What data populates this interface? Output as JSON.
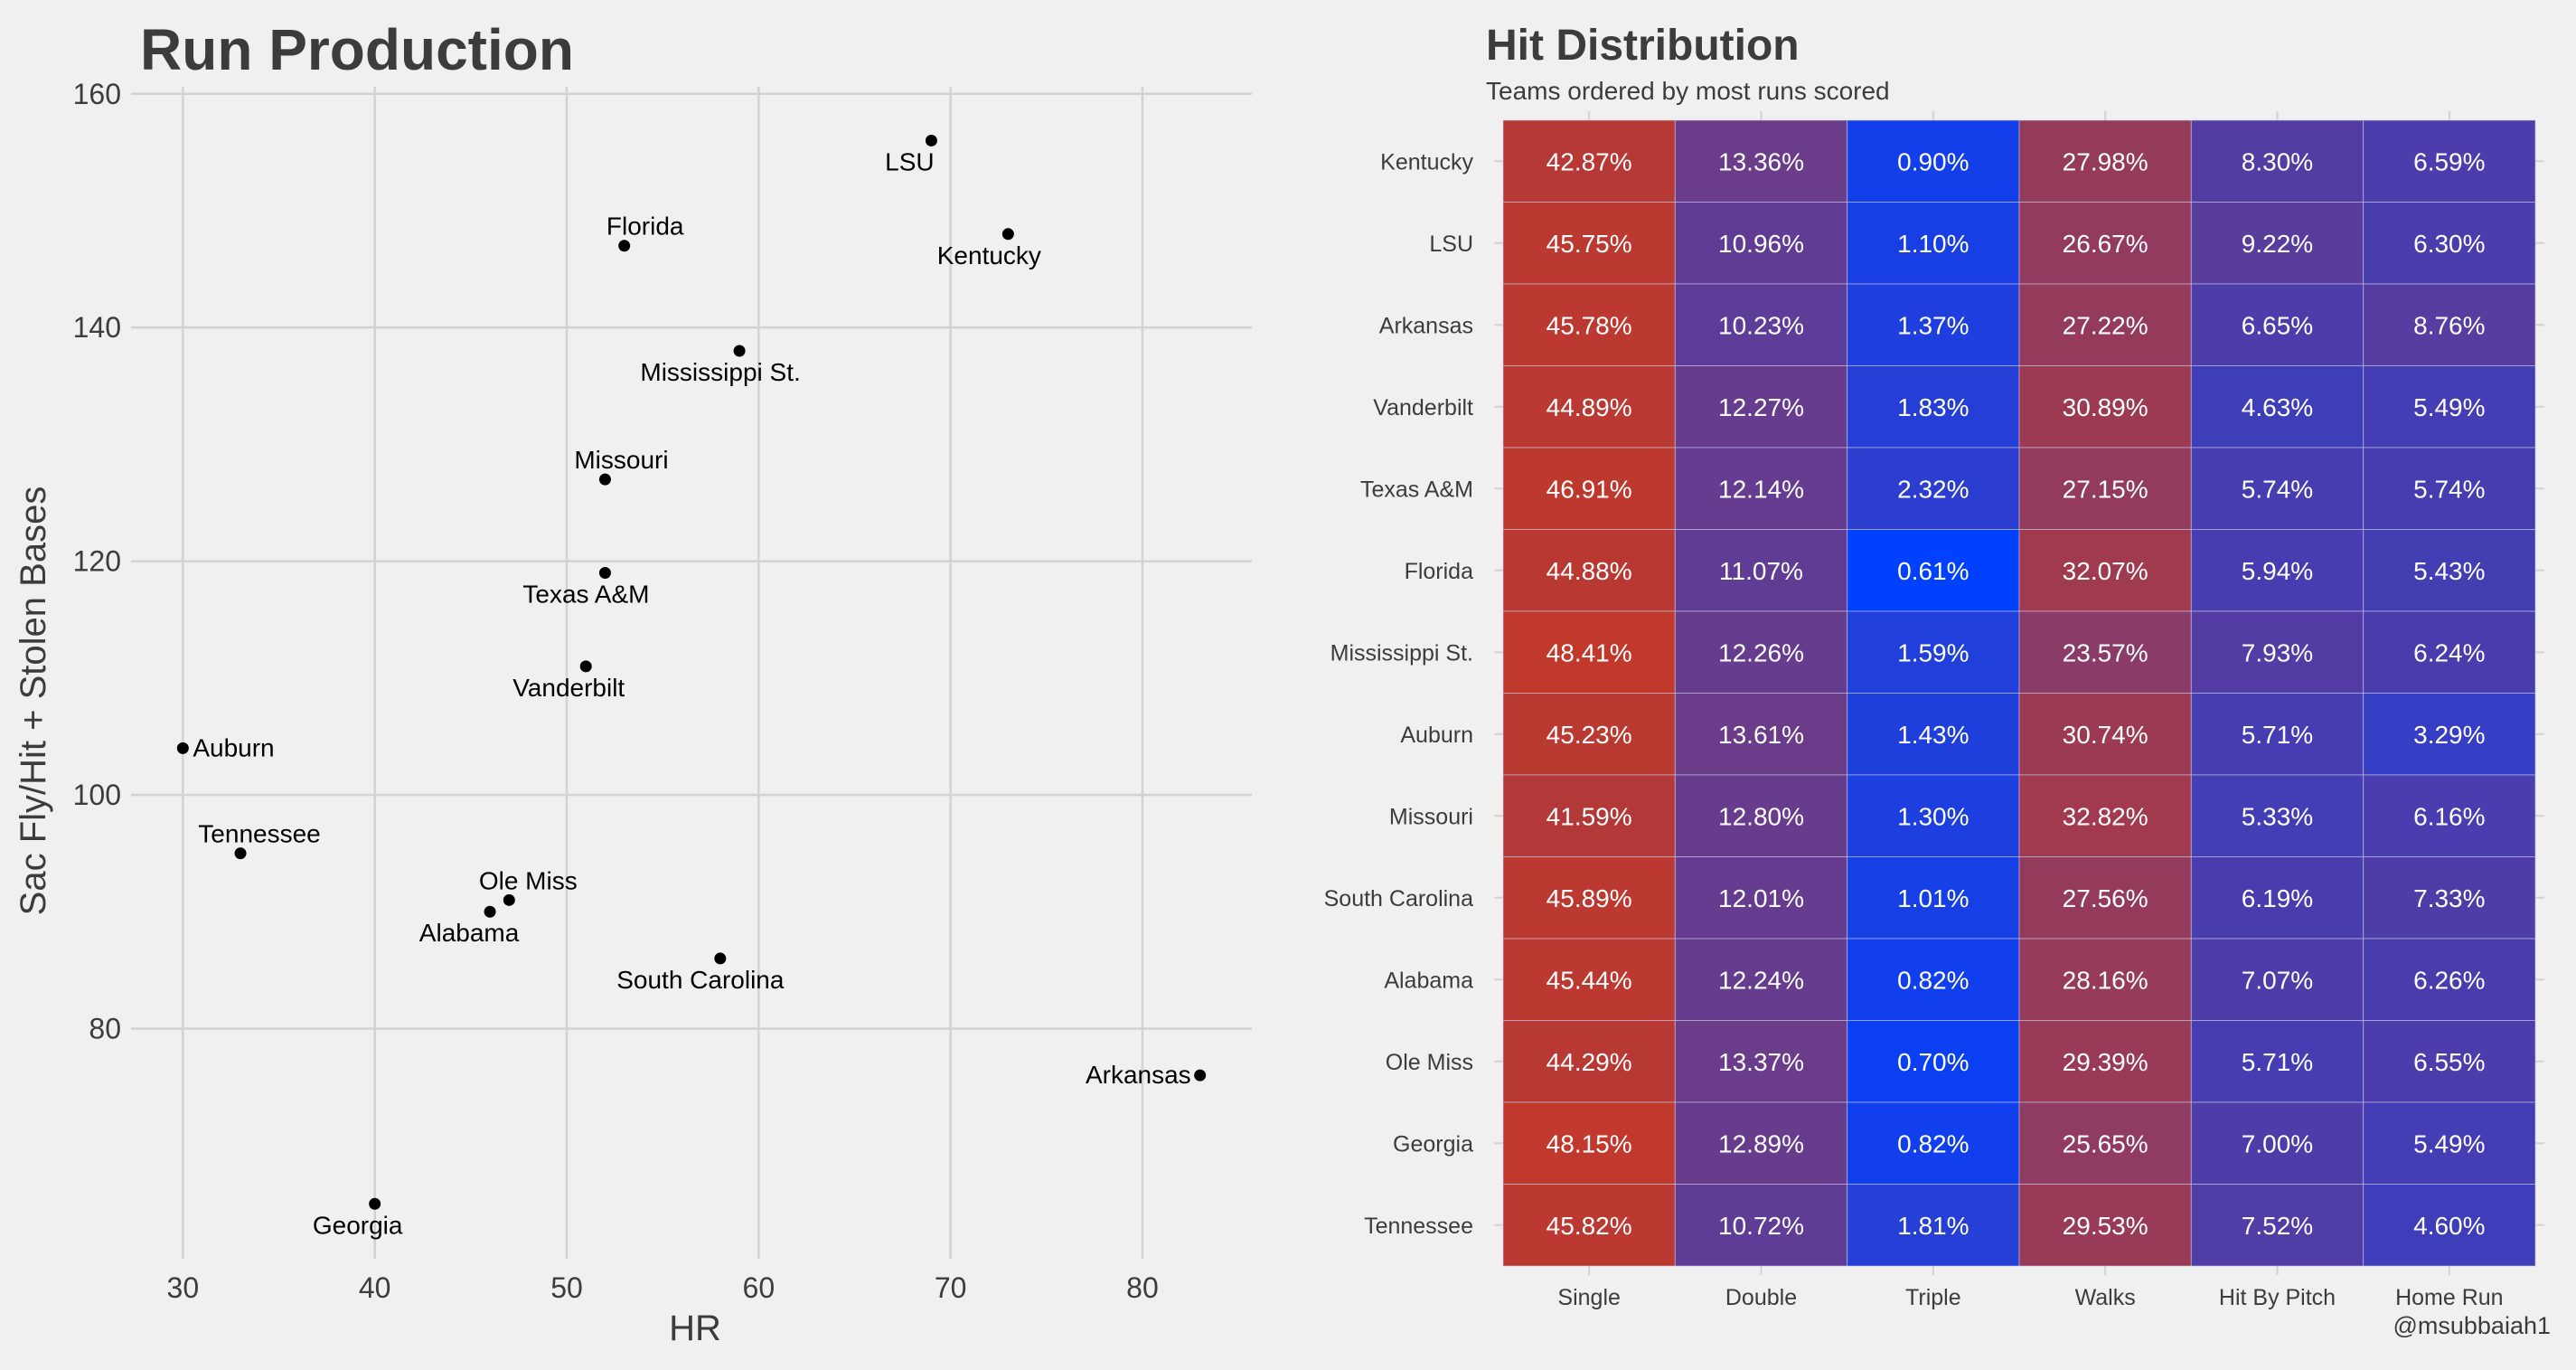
{
  "chart_data": [
    {
      "type": "scatter",
      "title": "Run Production",
      "xlabel": "HR",
      "ylabel": "Sac Fly/Hit + Stolen Bases",
      "xlim": [
        27.3,
        85.7
      ],
      "ylim": [
        60.3,
        160.6
      ],
      "xticks": [
        30,
        40,
        50,
        60,
        70,
        80
      ],
      "yticks": [
        80,
        100,
        120,
        140,
        160
      ],
      "grid": true,
      "points": [
        {
          "label": "LSU",
          "x": 69,
          "y": 156
        },
        {
          "label": "Kentucky",
          "x": 73,
          "y": 148
        },
        {
          "label": "Florida",
          "x": 53,
          "y": 147
        },
        {
          "label": "Mississippi St.",
          "x": 59,
          "y": 138
        },
        {
          "label": "Missouri",
          "x": 52,
          "y": 127
        },
        {
          "label": "Texas A&M",
          "x": 52,
          "y": 119
        },
        {
          "label": "Vanderbilt",
          "x": 51,
          "y": 111
        },
        {
          "label": "Auburn",
          "x": 30,
          "y": 104
        },
        {
          "label": "Tennessee",
          "x": 33,
          "y": 95
        },
        {
          "label": "Ole Miss",
          "x": 47,
          "y": 91
        },
        {
          "label": "Alabama",
          "x": 46,
          "y": 90
        },
        {
          "label": "South Carolina",
          "x": 58,
          "y": 86
        },
        {
          "label": "Arkansas",
          "x": 83,
          "y": 76
        },
        {
          "label": "Georgia",
          "x": 40,
          "y": 65
        }
      ]
    },
    {
      "type": "heatmap",
      "title": "Hit Distribution",
      "subtitle": "Teams ordered by most runs scored",
      "columns": [
        "Single",
        "Double",
        "Triple",
        "Walks",
        "Hit By Pitch",
        "Home Run"
      ],
      "rows": [
        "Kentucky",
        "LSU",
        "Arkansas",
        "Vanderbilt",
        "Texas A&M",
        "Florida",
        "Mississippi St.",
        "Auburn",
        "Missouri",
        "South Carolina",
        "Alabama",
        "Ole Miss",
        "Georgia",
        "Tennessee"
      ],
      "values": [
        [
          42.87,
          13.36,
          0.9,
          27.98,
          8.3,
          6.59
        ],
        [
          45.75,
          10.96,
          1.1,
          26.67,
          9.22,
          6.3
        ],
        [
          45.78,
          10.23,
          1.37,
          27.22,
          6.65,
          8.76
        ],
        [
          44.89,
          12.27,
          1.83,
          30.89,
          4.63,
          5.49
        ],
        [
          46.91,
          12.14,
          2.32,
          27.15,
          5.74,
          5.74
        ],
        [
          44.88,
          11.07,
          0.61,
          32.07,
          5.94,
          5.43
        ],
        [
          48.41,
          12.26,
          1.59,
          23.57,
          7.93,
          6.24
        ],
        [
          45.23,
          13.61,
          1.43,
          30.74,
          5.71,
          3.29
        ],
        [
          41.59,
          12.8,
          1.3,
          32.82,
          5.33,
          6.16
        ],
        [
          45.89,
          12.01,
          1.01,
          27.56,
          6.19,
          7.33
        ],
        [
          45.44,
          12.24,
          0.82,
          28.16,
          7.07,
          6.26
        ],
        [
          44.29,
          13.37,
          0.7,
          29.39,
          5.71,
          6.55
        ],
        [
          48.15,
          12.89,
          0.82,
          25.65,
          7.0,
          5.49
        ],
        [
          45.82,
          10.72,
          1.81,
          29.53,
          7.52,
          4.6
        ]
      ],
      "colors": {
        "low": "#0040ff",
        "high": "#c0392b"
      }
    }
  ],
  "credit": "@msubbaiah1"
}
